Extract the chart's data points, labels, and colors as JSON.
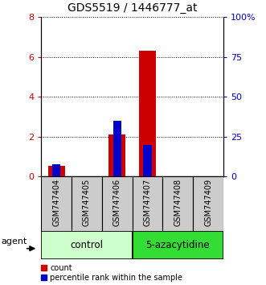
{
  "title": "GDS5519 / 1446777_at",
  "samples": [
    "GSM747404",
    "GSM747405",
    "GSM747406",
    "GSM747407",
    "GSM747408",
    "GSM747409"
  ],
  "count_values": [
    0.55,
    0.0,
    2.1,
    6.3,
    0.0,
    0.0
  ],
  "percentile_values": [
    8.0,
    0.0,
    35.0,
    20.0,
    0.0,
    0.0
  ],
  "left_ylim": [
    0,
    8
  ],
  "right_ylim": [
    0,
    100
  ],
  "left_yticks": [
    0,
    2,
    4,
    6,
    8
  ],
  "right_yticks": [
    0,
    25,
    50,
    75,
    100
  ],
  "right_yticklabels": [
    "0",
    "25",
    "50",
    "75",
    "100%"
  ],
  "left_yticklabels": [
    "0",
    "2",
    "4",
    "6",
    "8"
  ],
  "groups": [
    {
      "label": "control",
      "samples": [
        0,
        1,
        2
      ],
      "color": "#ccffcc"
    },
    {
      "label": "5-azacytidine",
      "samples": [
        3,
        4,
        5
      ],
      "color": "#33dd33"
    }
  ],
  "agent_label": "agent",
  "count_color": "#cc0000",
  "percentile_color": "#0000cc",
  "bar_width": 0.55,
  "sample_box_color": "#cccccc",
  "legend_count_label": "count",
  "legend_percentile_label": "percentile rank within the sample"
}
